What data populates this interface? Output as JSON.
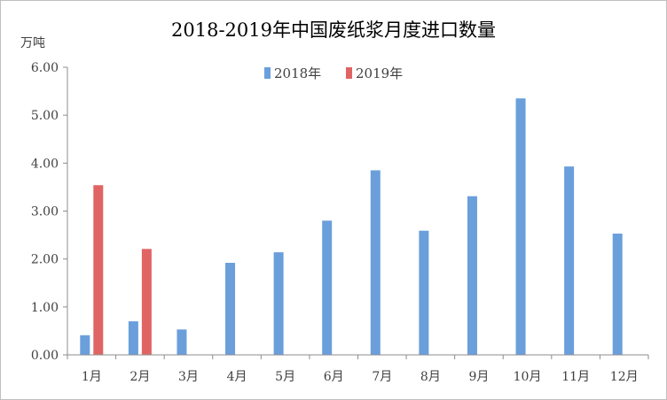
{
  "chart_data": {
    "type": "bar",
    "title": "2018-2019年中国废纸浆月度进口数量",
    "ylabel": "万吨",
    "xlabel": "",
    "categories": [
      "1月",
      "2月",
      "3月",
      "4月",
      "5月",
      "6月",
      "7月",
      "8月",
      "9月",
      "10月",
      "11月",
      "12月"
    ],
    "yticks": [
      "0.00",
      "1.00",
      "2.00",
      "3.00",
      "4.00",
      "5.00",
      "6.00"
    ],
    "ylim": [
      0,
      6
    ],
    "legend_position": "top",
    "grid": false,
    "series": [
      {
        "name": "2018年",
        "color": "#6a9fdc",
        "values": [
          0.41,
          0.7,
          0.53,
          1.92,
          2.14,
          2.8,
          3.85,
          2.59,
          3.31,
          5.35,
          3.93,
          2.53
        ]
      },
      {
        "name": "2019年",
        "color": "#e06464",
        "values": [
          3.54,
          2.21,
          null,
          null,
          null,
          null,
          null,
          null,
          null,
          null,
          null,
          null
        ]
      }
    ]
  }
}
